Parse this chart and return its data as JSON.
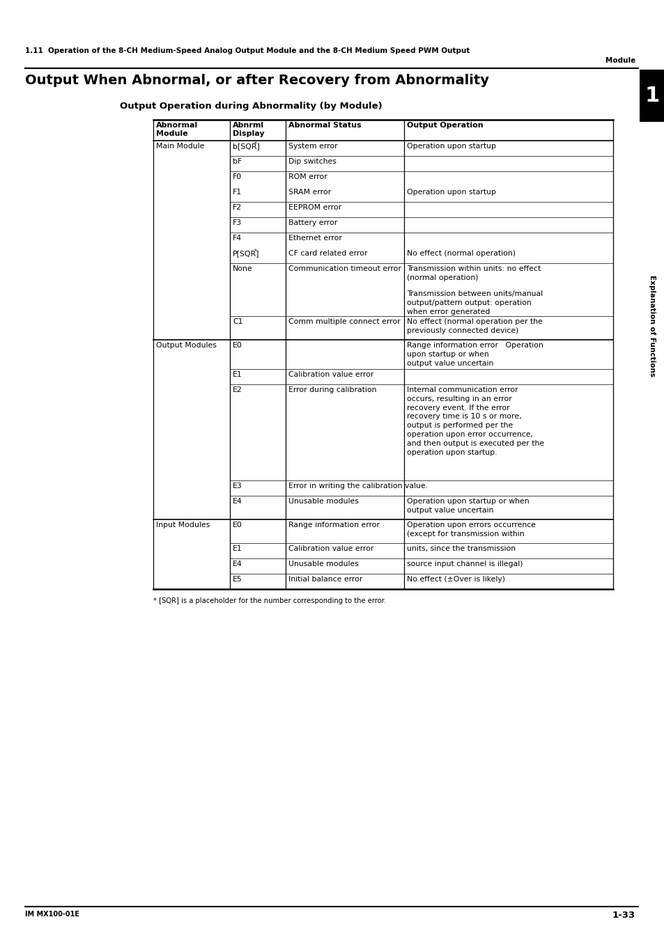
{
  "page_header_line1": "1.11  Operation of the 8-CH Medium-Speed Analog Output Module and the 8-CH Medium Speed PWM Output",
  "page_header_line2": "Module",
  "section_title": "Output When Abnormal, or after Recovery from Abnormality",
  "table_title": "Output Operation during Abnormality (by Module)",
  "col_headers_row1": [
    "Abnormal",
    "Abnrml",
    "Abnormal Status",
    "Output Operation"
  ],
  "col_headers_row2": [
    "Module",
    "Display",
    "",
    ""
  ],
  "footnote": "* [SQR] is a placeholder for the number corresponding to the error.",
  "footer_left": "IM MX100-01E",
  "footer_right": "1-33",
  "tab_number": "1",
  "sidebar_text": "Explanation of Functions",
  "bg_color": "#ffffff",
  "text_color": "#000000",
  "tab_bg": "#000000"
}
